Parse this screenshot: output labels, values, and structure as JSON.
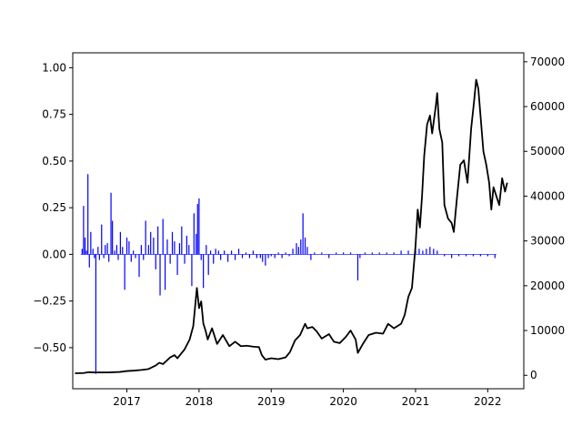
{
  "chart_data": {
    "type": "bar+line",
    "title": "",
    "xlabel": "",
    "ylabel_left": "",
    "ylabel_right": "",
    "grid": false,
    "legend": "none",
    "x_ticks": [
      "2017",
      "2018",
      "2019",
      "2020",
      "2021",
      "2022"
    ],
    "x_tick_values": [
      2017.0,
      2018.0,
      2019.0,
      2020.0,
      2021.0,
      2022.0
    ],
    "xlim": [
      2016.25,
      2022.5
    ],
    "left_axis": {
      "ylim": [
        -0.72,
        1.08
      ],
      "ticks": [
        "−0.50",
        "−0.25",
        "0.00",
        "0.25",
        "0.50",
        "0.75",
        "1.00"
      ],
      "tick_values": [
        -0.5,
        -0.25,
        0.0,
        0.25,
        0.5,
        0.75,
        1.0
      ]
    },
    "right_axis": {
      "ylim": [
        -3000,
        72000
      ],
      "ticks": [
        "0",
        "10000",
        "20000",
        "30000",
        "40000",
        "50000",
        "60000",
        "70000"
      ],
      "tick_values": [
        0,
        10000,
        20000,
        30000,
        40000,
        50000,
        60000,
        70000
      ]
    },
    "series": [
      {
        "type": "bar",
        "axis": "left",
        "color": "#0000ff",
        "points": [
          [
            2016.38,
            0.03
          ],
          [
            2016.4,
            0.26
          ],
          [
            2016.42,
            0.09
          ],
          [
            2016.44,
            0.02
          ],
          [
            2016.46,
            0.43
          ],
          [
            2016.48,
            -0.07
          ],
          [
            2016.5,
            0.12
          ],
          [
            2016.53,
            0.03
          ],
          [
            2016.55,
            -0.02
          ],
          [
            2016.57,
            -0.64
          ],
          [
            2016.6,
            0.04
          ],
          [
            2016.62,
            -0.03
          ],
          [
            2016.65,
            0.16
          ],
          [
            2016.68,
            -0.02
          ],
          [
            2016.7,
            0.05
          ],
          [
            2016.73,
            0.06
          ],
          [
            2016.75,
            -0.04
          ],
          [
            2016.78,
            0.33
          ],
          [
            2016.8,
            0.18
          ],
          [
            2016.83,
            0.02
          ],
          [
            2016.86,
            0.05
          ],
          [
            2016.88,
            -0.03
          ],
          [
            2016.91,
            0.12
          ],
          [
            2016.94,
            0.04
          ],
          [
            2016.97,
            -0.19
          ],
          [
            2017.0,
            0.09
          ],
          [
            2017.03,
            0.07
          ],
          [
            2017.06,
            -0.04
          ],
          [
            2017.09,
            0.02
          ],
          [
            2017.12,
            -0.02
          ],
          [
            2017.17,
            -0.12
          ],
          [
            2017.2,
            0.05
          ],
          [
            2017.23,
            -0.03
          ],
          [
            2017.26,
            0.18
          ],
          [
            2017.3,
            0.05
          ],
          [
            2017.33,
            0.12
          ],
          [
            2017.37,
            0.09
          ],
          [
            2017.4,
            -0.08
          ],
          [
            2017.43,
            0.15
          ],
          [
            2017.46,
            -0.22
          ],
          [
            2017.5,
            0.19
          ],
          [
            2017.53,
            -0.19
          ],
          [
            2017.56,
            0.08
          ],
          [
            2017.6,
            -0.05
          ],
          [
            2017.63,
            0.12
          ],
          [
            2017.66,
            0.07
          ],
          [
            2017.7,
            -0.11
          ],
          [
            2017.73,
            0.06
          ],
          [
            2017.76,
            0.15
          ],
          [
            2017.8,
            -0.05
          ],
          [
            2017.83,
            0.1
          ],
          [
            2017.86,
            0.05
          ],
          [
            2017.9,
            -0.17
          ],
          [
            2017.93,
            0.22
          ],
          [
            2017.96,
            0.11
          ],
          [
            2017.98,
            0.27
          ],
          [
            2018.0,
            0.3
          ],
          [
            2018.03,
            -0.03
          ],
          [
            2018.06,
            -0.18
          ],
          [
            2018.1,
            0.05
          ],
          [
            2018.13,
            -0.11
          ],
          [
            2018.16,
            0.02
          ],
          [
            2018.2,
            -0.05
          ],
          [
            2018.23,
            0.03
          ],
          [
            2018.27,
            0.02
          ],
          [
            2018.3,
            -0.03
          ],
          [
            2018.35,
            0.02
          ],
          [
            2018.4,
            -0.04
          ],
          [
            2018.45,
            0.02
          ],
          [
            2018.5,
            -0.03
          ],
          [
            2018.55,
            0.03
          ],
          [
            2018.6,
            -0.02
          ],
          [
            2018.65,
            0.01
          ],
          [
            2018.7,
            -0.02
          ],
          [
            2018.75,
            0.02
          ],
          [
            2018.8,
            -0.02
          ],
          [
            2018.85,
            -0.02
          ],
          [
            2018.88,
            -0.04
          ],
          [
            2018.92,
            -0.06
          ],
          [
            2018.96,
            -0.02
          ],
          [
            2019.0,
            -0.01
          ],
          [
            2019.05,
            -0.02
          ],
          [
            2019.1,
            0.01
          ],
          [
            2019.15,
            -0.02
          ],
          [
            2019.2,
            0.01
          ],
          [
            2019.25,
            -0.01
          ],
          [
            2019.3,
            0.03
          ],
          [
            2019.35,
            0.06
          ],
          [
            2019.38,
            0.04
          ],
          [
            2019.41,
            0.08
          ],
          [
            2019.44,
            0.22
          ],
          [
            2019.47,
            0.09
          ],
          [
            2019.5,
            0.04
          ],
          [
            2019.55,
            -0.03
          ],
          [
            2019.6,
            0.01
          ],
          [
            2019.7,
            0.01
          ],
          [
            2019.8,
            -0.02
          ],
          [
            2019.9,
            0.01
          ],
          [
            2020.0,
            0.01
          ],
          [
            2020.1,
            0.01
          ],
          [
            2020.2,
            -0.14
          ],
          [
            2020.23,
            -0.02
          ],
          [
            2020.3,
            0.01
          ],
          [
            2020.4,
            0.01
          ],
          [
            2020.5,
            0.01
          ],
          [
            2020.6,
            0.01
          ],
          [
            2020.7,
            0.01
          ],
          [
            2020.8,
            0.02
          ],
          [
            2020.9,
            0.02
          ],
          [
            2021.0,
            0.04
          ],
          [
            2021.05,
            0.03
          ],
          [
            2021.1,
            0.02
          ],
          [
            2021.15,
            0.03
          ],
          [
            2021.2,
            0.04
          ],
          [
            2021.25,
            0.03
          ],
          [
            2021.3,
            0.02
          ],
          [
            2021.4,
            -0.01
          ],
          [
            2021.5,
            -0.02
          ],
          [
            2021.6,
            -0.01
          ],
          [
            2021.7,
            -0.01
          ],
          [
            2021.8,
            -0.01
          ],
          [
            2021.9,
            -0.01
          ],
          [
            2022.0,
            -0.01
          ],
          [
            2022.1,
            -0.02
          ]
        ]
      },
      {
        "type": "line",
        "axis": "right",
        "color": "#000000",
        "points": [
          [
            2016.28,
            450
          ],
          [
            2016.4,
            500
          ],
          [
            2016.47,
            700
          ],
          [
            2016.55,
            650
          ],
          [
            2016.75,
            650
          ],
          [
            2016.9,
            750
          ],
          [
            2017.0,
            950
          ],
          [
            2017.1,
            1050
          ],
          [
            2017.2,
            1200
          ],
          [
            2017.3,
            1400
          ],
          [
            2017.4,
            2200
          ],
          [
            2017.45,
            2800
          ],
          [
            2017.5,
            2500
          ],
          [
            2017.6,
            4000
          ],
          [
            2017.66,
            4500
          ],
          [
            2017.7,
            3800
          ],
          [
            2017.8,
            5800
          ],
          [
            2017.87,
            8000
          ],
          [
            2017.92,
            11000
          ],
          [
            2017.97,
            19500
          ],
          [
            2018.0,
            15000
          ],
          [
            2018.03,
            16500
          ],
          [
            2018.06,
            11500
          ],
          [
            2018.09,
            10000
          ],
          [
            2018.12,
            8000
          ],
          [
            2018.18,
            10500
          ],
          [
            2018.25,
            7000
          ],
          [
            2018.33,
            9000
          ],
          [
            2018.42,
            6500
          ],
          [
            2018.5,
            7500
          ],
          [
            2018.58,
            6500
          ],
          [
            2018.66,
            6600
          ],
          [
            2018.75,
            6400
          ],
          [
            2018.83,
            6300
          ],
          [
            2018.87,
            4500
          ],
          [
            2018.92,
            3500
          ],
          [
            2019.0,
            3800
          ],
          [
            2019.1,
            3600
          ],
          [
            2019.2,
            4000
          ],
          [
            2019.26,
            5200
          ],
          [
            2019.33,
            7800
          ],
          [
            2019.4,
            9000
          ],
          [
            2019.47,
            11500
          ],
          [
            2019.5,
            10500
          ],
          [
            2019.57,
            10800
          ],
          [
            2019.63,
            9800
          ],
          [
            2019.7,
            8200
          ],
          [
            2019.8,
            9200
          ],
          [
            2019.87,
            7500
          ],
          [
            2019.95,
            7200
          ],
          [
            2020.03,
            8500
          ],
          [
            2020.1,
            10000
          ],
          [
            2020.17,
            8000
          ],
          [
            2020.2,
            5000
          ],
          [
            2020.27,
            7000
          ],
          [
            2020.35,
            9000
          ],
          [
            2020.45,
            9500
          ],
          [
            2020.55,
            9300
          ],
          [
            2020.62,
            11500
          ],
          [
            2020.7,
            10500
          ],
          [
            2020.8,
            11500
          ],
          [
            2020.85,
            13500
          ],
          [
            2020.9,
            17500
          ],
          [
            2020.95,
            19500
          ],
          [
            2021.0,
            29000
          ],
          [
            2021.03,
            37000
          ],
          [
            2021.06,
            33000
          ],
          [
            2021.09,
            40000
          ],
          [
            2021.12,
            49000
          ],
          [
            2021.16,
            56000
          ],
          [
            2021.2,
            58000
          ],
          [
            2021.23,
            54000
          ],
          [
            2021.28,
            60000
          ],
          [
            2021.3,
            63000
          ],
          [
            2021.33,
            55000
          ],
          [
            2021.37,
            52000
          ],
          [
            2021.4,
            38000
          ],
          [
            2021.45,
            35000
          ],
          [
            2021.5,
            34000
          ],
          [
            2021.53,
            32000
          ],
          [
            2021.57,
            39000
          ],
          [
            2021.62,
            47000
          ],
          [
            2021.67,
            48000
          ],
          [
            2021.72,
            43000
          ],
          [
            2021.77,
            55000
          ],
          [
            2021.81,
            61000
          ],
          [
            2021.84,
            66000
          ],
          [
            2021.87,
            64000
          ],
          [
            2021.9,
            58000
          ],
          [
            2021.94,
            50000
          ],
          [
            2021.98,
            47000
          ],
          [
            2022.02,
            43000
          ],
          [
            2022.05,
            37000
          ],
          [
            2022.08,
            42000
          ],
          [
            2022.12,
            40000
          ],
          [
            2022.16,
            38000
          ],
          [
            2022.2,
            44000
          ],
          [
            2022.24,
            41000
          ],
          [
            2022.27,
            43000
          ]
        ]
      }
    ]
  }
}
